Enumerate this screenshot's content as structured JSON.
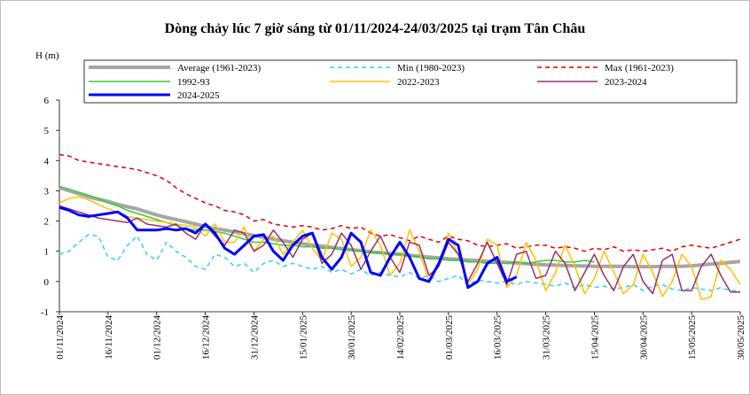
{
  "chart_data": {
    "type": "line",
    "title": "Dòng chảy lúc 7 giờ sáng từ 01/11/2024-24/03/2025 tại trạm Tân Châu",
    "y_label": "H (m)",
    "legend": "top",
    "grid": false,
    "x": [
      "01/11/2024",
      "04/11/2024",
      "07/11/2024",
      "10/11/2024",
      "13/11/2024",
      "16/11/2024",
      "19/11/2024",
      "22/11/2024",
      "25/11/2024",
      "28/11/2024",
      "01/12/2024",
      "04/12/2024",
      "07/12/2024",
      "10/12/2024",
      "13/12/2024",
      "16/12/2024",
      "19/12/2024",
      "22/12/2024",
      "25/12/2024",
      "28/12/2024",
      "31/12/2024",
      "03/01/2025",
      "06/01/2025",
      "09/01/2025",
      "12/01/2025",
      "15/01/2025",
      "18/01/2025",
      "21/01/2025",
      "24/01/2025",
      "27/01/2025",
      "30/01/2025",
      "02/02/2025",
      "05/02/2025",
      "08/02/2025",
      "11/02/2025",
      "14/02/2025",
      "17/02/2025",
      "20/02/2025",
      "23/02/2025",
      "26/02/2025",
      "01/03/2025",
      "04/03/2025",
      "07/03/2025",
      "10/03/2025",
      "13/03/2025",
      "16/03/2025",
      "19/03/2025",
      "22/03/2025",
      "25/03/2025",
      "28/03/2025",
      "31/03/2025",
      "03/04/2025",
      "06/04/2025",
      "09/04/2025",
      "12/04/2025",
      "15/04/2025",
      "18/04/2025",
      "21/04/2025",
      "24/04/2025",
      "27/04/2025",
      "30/04/2025",
      "03/05/2025",
      "06/05/2025",
      "09/05/2025",
      "12/05/2025",
      "15/05/2025",
      "18/05/2025",
      "21/05/2025",
      "24/05/2025",
      "27/05/2025",
      "30/05/2025"
    ],
    "xlim": [
      "01/11/2024",
      "30/05/2025"
    ],
    "xticks": [
      "01/11/2024",
      "16/11/2024",
      "01/12/2024",
      "16/12/2024",
      "31/12/2024",
      "15/01/2025",
      "30/01/2025",
      "14/02/2025",
      "01/03/2025",
      "16/03/2025",
      "31/03/2025",
      "15/04/2025",
      "30/04/2025",
      "15/05/2025",
      "30/05/2025"
    ],
    "ylim": [
      -1,
      6
    ],
    "yticks": [
      -1,
      0,
      1,
      2,
      3,
      4,
      5,
      6
    ],
    "series": [
      {
        "name": "Average (1961-2023)",
        "color": "#a6a6a6",
        "bold": true,
        "dashed": false,
        "values": [
          3.1,
          3.0,
          2.9,
          2.8,
          2.72,
          2.65,
          2.55,
          2.47,
          2.4,
          2.3,
          2.2,
          2.12,
          2.05,
          1.98,
          1.9,
          1.82,
          1.75,
          1.7,
          1.64,
          1.58,
          1.52,
          1.46,
          1.4,
          1.35,
          1.3,
          1.25,
          1.2,
          1.17,
          1.13,
          1.09,
          1.05,
          1.02,
          0.98,
          0.95,
          0.92,
          0.9,
          0.87,
          0.84,
          0.81,
          0.78,
          0.75,
          0.73,
          0.71,
          0.69,
          0.67,
          0.65,
          0.63,
          0.61,
          0.59,
          0.57,
          0.55,
          0.54,
          0.53,
          0.52,
          0.51,
          0.5,
          0.5,
          0.5,
          0.5,
          0.49,
          0.49,
          0.49,
          0.5,
          0.5,
          0.5,
          0.52,
          0.55,
          0.58,
          0.6,
          0.63,
          0.66
        ]
      },
      {
        "name": "Min (1980-2023)",
        "color": "#33ccff",
        "bold": false,
        "dashed": true,
        "values": [
          0.9,
          1.0,
          1.3,
          1.55,
          1.5,
          0.8,
          0.7,
          1.2,
          1.5,
          0.9,
          0.7,
          1.3,
          1.0,
          0.8,
          0.5,
          0.4,
          0.9,
          0.8,
          0.5,
          0.6,
          0.3,
          0.6,
          0.7,
          0.5,
          0.6,
          0.5,
          0.4,
          0.5,
          0.3,
          0.4,
          0.25,
          0.4,
          0.2,
          0.3,
          0.2,
          0.15,
          0.3,
          0.1,
          0.2,
          0.0,
          0.1,
          0.2,
          -0.1,
          0.05,
          0.0,
          -0.05,
          0.0,
          -0.1,
          0.0,
          -0.05,
          -0.1,
          -0.15,
          -0.05,
          -0.2,
          -0.1,
          -0.2,
          -0.15,
          -0.25,
          -0.2,
          -0.1,
          -0.3,
          -0.15,
          -0.1,
          -0.25,
          -0.3,
          -0.2,
          -0.25,
          -0.3,
          -0.2,
          -0.3,
          -0.3
        ]
      },
      {
        "name": "Max (1961-2023)",
        "color": "#e00000",
        "bold": false,
        "dashed": true,
        "values": [
          4.2,
          4.15,
          4.0,
          3.95,
          3.9,
          3.85,
          3.8,
          3.75,
          3.7,
          3.6,
          3.5,
          3.35,
          3.1,
          2.9,
          2.75,
          2.6,
          2.5,
          2.35,
          2.3,
          2.2,
          2.0,
          2.05,
          1.9,
          1.85,
          1.8,
          1.85,
          1.8,
          1.7,
          1.75,
          1.85,
          1.75,
          1.8,
          1.6,
          1.5,
          1.55,
          1.45,
          1.35,
          1.5,
          1.4,
          1.3,
          1.5,
          1.4,
          1.35,
          1.2,
          1.15,
          1.2,
          1.25,
          1.1,
          1.15,
          1.2,
          1.2,
          1.1,
          1.15,
          1.1,
          1.0,
          1.1,
          1.05,
          1.15,
          1.0,
          1.05,
          1.0,
          1.05,
          1.1,
          1.0,
          1.15,
          1.2,
          1.15,
          1.1,
          1.2,
          1.3,
          1.4
        ]
      },
      {
        "name": "1992-93",
        "color": "#33cc33",
        "bold": false,
        "dashed": false,
        "values": [
          3.15,
          3.05,
          2.95,
          2.85,
          2.75,
          2.6,
          2.5,
          2.35,
          2.25,
          2.15,
          2.05,
          1.95,
          1.85,
          1.75,
          1.7,
          1.7,
          1.65,
          1.6,
          1.5,
          1.4,
          1.3,
          1.3,
          1.25,
          1.2,
          1.2,
          1.15,
          1.15,
          1.1,
          1.1,
          1.05,
          1.05,
          1.0,
          0.95,
          0.95,
          0.9,
          0.9,
          0.85,
          0.8,
          0.75,
          0.75,
          0.7,
          0.7,
          0.65,
          0.65,
          0.6,
          0.6,
          0.6,
          0.65,
          0.6,
          0.65,
          0.7,
          0.7,
          0.65,
          0.65,
          0.7,
          0.65,
          null,
          null,
          null,
          null,
          null,
          null,
          null,
          null,
          null,
          null,
          null,
          null,
          null,
          null,
          null
        ]
      },
      {
        "name": "2022-2023",
        "color": "#ffc000",
        "bold": false,
        "dashed": false,
        "values": [
          2.6,
          2.75,
          2.8,
          2.7,
          2.55,
          2.4,
          2.3,
          2.15,
          2.1,
          2.05,
          2.0,
          1.95,
          1.9,
          1.85,
          1.8,
          1.5,
          1.9,
          1.3,
          1.3,
          1.8,
          1.0,
          1.4,
          1.5,
          0.9,
          1.3,
          1.7,
          1.1,
          0.7,
          1.6,
          1.4,
          0.5,
          0.8,
          1.7,
          1.2,
          0.2,
          0.6,
          1.7,
          1.0,
          0.0,
          0.5,
          1.6,
          0.9,
          -0.1,
          0.4,
          1.4,
          1.2,
          -0.2,
          0.2,
          1.3,
          0.7,
          -0.3,
          0.3,
          1.2,
          0.5,
          -0.4,
          0.1,
          1.0,
          0.3,
          -0.4,
          -0.1,
          0.9,
          0.3,
          -0.5,
          0.0,
          0.9,
          0.5,
          -0.6,
          -0.5,
          0.7,
          0.4,
          -0.1
        ]
      },
      {
        "name": "2023-2024",
        "color": "#993366",
        "bold": false,
        "dashed": false,
        "values": [
          2.5,
          2.4,
          2.3,
          2.2,
          2.1,
          2.05,
          2.0,
          1.95,
          2.1,
          1.9,
          1.85,
          1.8,
          1.9,
          1.6,
          1.4,
          1.9,
          1.5,
          1.2,
          1.7,
          1.6,
          1.0,
          1.2,
          1.7,
          1.3,
          0.8,
          1.4,
          1.6,
          0.6,
          0.9,
          1.6,
          1.2,
          0.4,
          1.0,
          1.5,
          0.8,
          0.3,
          1.3,
          1.2,
          0.2,
          0.5,
          1.3,
          0.9,
          0.0,
          0.6,
          1.3,
          0.6,
          -0.1,
          0.9,
          1.0,
          0.1,
          0.2,
          1.0,
          0.6,
          -0.3,
          0.3,
          0.9,
          0.2,
          -0.3,
          0.5,
          0.9,
          0.0,
          -0.4,
          0.7,
          0.9,
          -0.3,
          -0.3,
          0.5,
          0.9,
          0.2,
          -0.35,
          -0.35
        ]
      },
      {
        "name": "2024-2025",
        "color": "#0000ff",
        "bold": true,
        "dashed": false,
        "values": [
          2.45,
          2.35,
          2.2,
          2.15,
          2.2,
          2.25,
          2.3,
          2.1,
          1.7,
          1.7,
          1.7,
          1.75,
          1.7,
          1.75,
          1.6,
          1.9,
          1.6,
          1.1,
          0.9,
          1.2,
          1.5,
          1.55,
          1.0,
          0.7,
          1.2,
          1.5,
          1.6,
          0.8,
          0.4,
          0.8,
          1.6,
          1.3,
          0.3,
          0.2,
          0.8,
          1.3,
          0.8,
          0.1,
          0.0,
          0.6,
          1.4,
          1.2,
          -0.2,
          0.0,
          0.6,
          0.8,
          0.0,
          0.15,
          null,
          null,
          null,
          null,
          null,
          null,
          null,
          null,
          null,
          null,
          null,
          null,
          null,
          null,
          null,
          null,
          null,
          null,
          null,
          null,
          null,
          null,
          null
        ]
      }
    ]
  }
}
